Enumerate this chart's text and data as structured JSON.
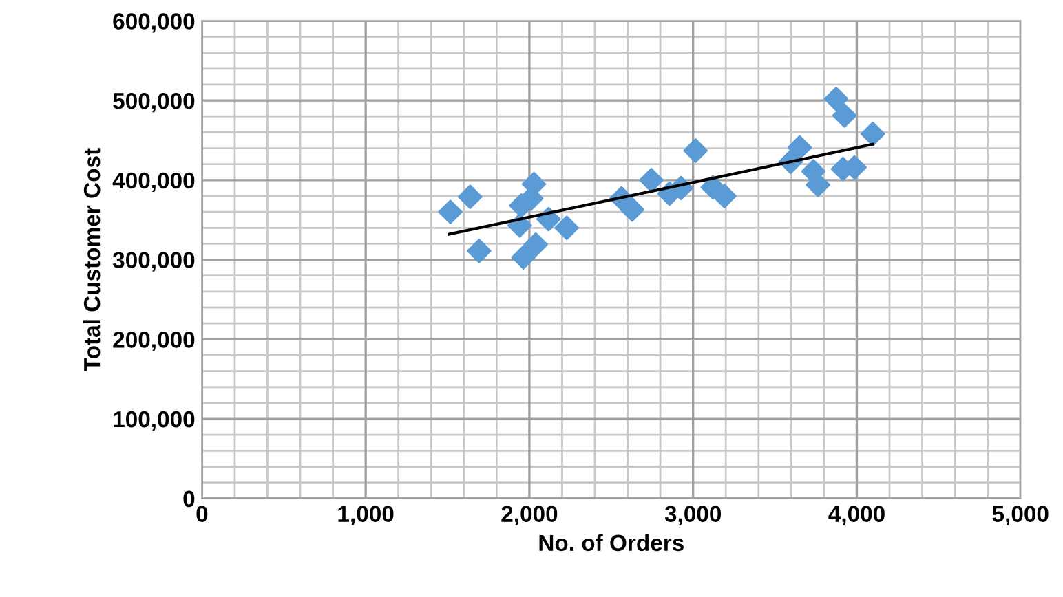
{
  "chart_data": {
    "type": "scatter",
    "xlabel": "No. of Orders",
    "ylabel": "Total Customer Cost",
    "xlim": [
      0,
      5000
    ],
    "xticks": [
      {
        "value": 0,
        "label": "0"
      },
      {
        "value": 1000,
        "label": "1,000"
      },
      {
        "value": 2000,
        "label": "2,000"
      },
      {
        "value": 3000,
        "label": "3,000"
      },
      {
        "value": 4000,
        "label": "4,000"
      },
      {
        "value": 5000,
        "label": "5,000"
      }
    ],
    "ylim": [
      0,
      600000
    ],
    "yticks": [
      {
        "value": 0,
        "label": "0"
      },
      {
        "value": 100000,
        "label": "100,000"
      },
      {
        "value": 200000,
        "label": "200,000"
      },
      {
        "value": 300000,
        "label": "300,000"
      },
      {
        "value": 400000,
        "label": "400,000"
      },
      {
        "value": 500000,
        "label": "500,000"
      },
      {
        "value": 600000,
        "label": "600,000"
      }
    ],
    "grid": true,
    "legend": false,
    "series": [
      {
        "color": "#5b9bd5",
        "marker": "diamond",
        "x": [
          1517,
          1638,
          1693,
          2028,
          2011,
          1950,
          1941,
          2039,
          1964,
          2117,
          2228,
          2563,
          2628,
          2745,
          2856,
          2926,
          3015,
          3121,
          3191,
          3874,
          3925,
          4098,
          3651,
          3596,
          3735,
          3763,
          3916,
          3986
        ],
        "values": [
          360000,
          379000,
          311000,
          395000,
          377000,
          368000,
          343000,
          319000,
          303000,
          351000,
          340000,
          377000,
          363000,
          400000,
          383000,
          390000,
          437000,
          391000,
          380000,
          502000,
          481000,
          458000,
          441000,
          423000,
          411000,
          394000,
          414000,
          416000
        ]
      },
      {
        "type": "line",
        "color": "#000000",
        "marker": "none",
        "line_style": "solid",
        "x": [
          1509,
          4098
        ],
        "values": [
          332000,
          445000
        ]
      }
    ]
  }
}
